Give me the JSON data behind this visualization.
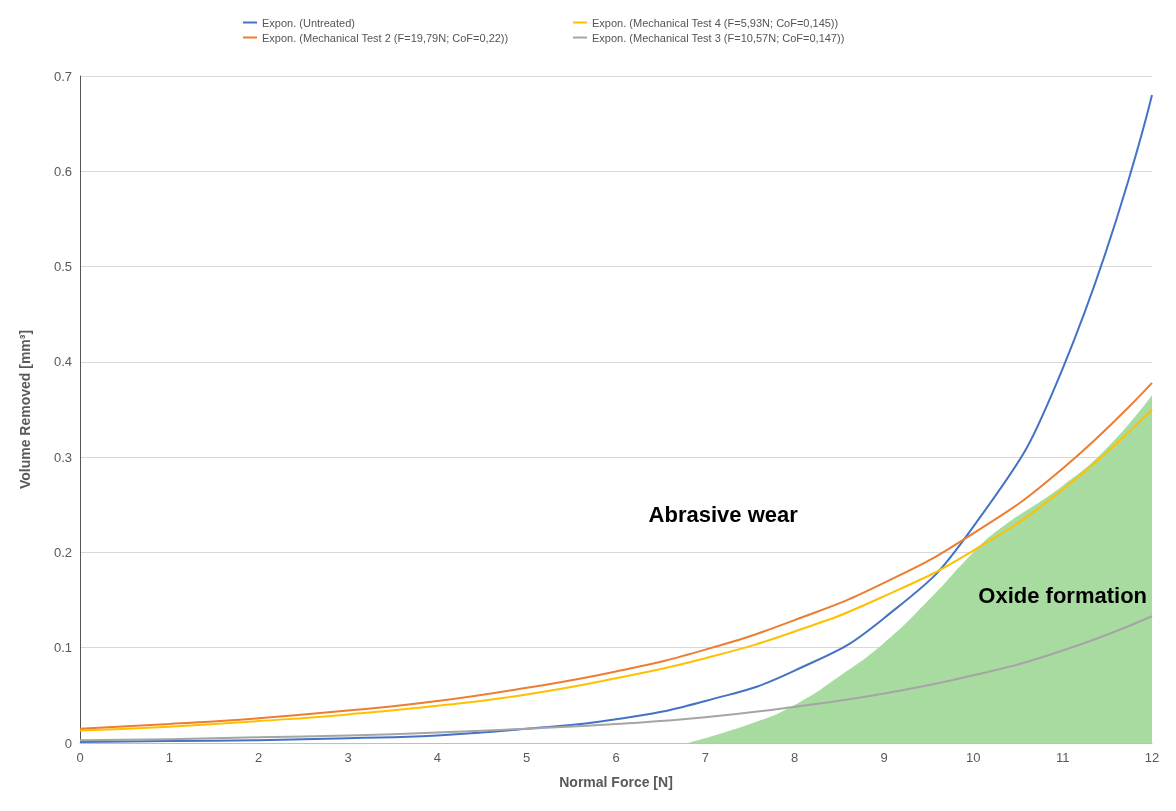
{
  "chart_data": {
    "type": "line",
    "xlabel": "Normal Force [N]",
    "ylabel": "Volume Removed [mm³]",
    "x": [
      0,
      1,
      2,
      3,
      4,
      5,
      6,
      7,
      8,
      9,
      10,
      11,
      12
    ],
    "series": [
      {
        "name": "Expon. (Untreated)",
        "color": "#4472c4",
        "values": [
          0.001,
          0.002,
          0.003,
          0.005,
          0.008,
          0.015,
          0.025,
          0.044,
          0.076,
          0.131,
          0.227,
          0.393,
          0.68
        ]
      },
      {
        "name": "Expon. (Mechanical Test 4 (F=5,93N; CoF=0,145))",
        "color": "#ffc000",
        "values": [
          0.013,
          0.017,
          0.023,
          0.03,
          0.039,
          0.051,
          0.068,
          0.089,
          0.117,
          0.154,
          0.202,
          0.266,
          0.35
        ]
      },
      {
        "name": "Expon. (Mechanical Test 2 (F=19,79N; CoF=0,22))",
        "color": "#ed7d31",
        "values": [
          0.015,
          0.02,
          0.026,
          0.034,
          0.044,
          0.058,
          0.075,
          0.098,
          0.129,
          0.168,
          0.22,
          0.288,
          0.378
        ]
      },
      {
        "name": "Expon. (Mechanical Test 3 (F=10,57N; CoF=0,147))",
        "color": "#a5a5a5",
        "values": [
          0.003,
          0.004,
          0.006,
          0.008,
          0.011,
          0.015,
          0.02,
          0.027,
          0.038,
          0.052,
          0.071,
          0.097,
          0.133
        ]
      },
      {
        "type": "area",
        "color": "#a8dba0",
        "x": [
          6.8,
          7.5,
          8,
          8.5,
          9,
          9.5,
          10,
          10.3,
          11,
          11.5,
          12
        ],
        "values": [
          0,
          0.02,
          0.04,
          0.07,
          0.105,
          0.15,
          0.2,
          0.225,
          0.27,
          0.31,
          0.365
        ]
      }
    ],
    "annotations": [
      "Abrasive wear",
      "Oxide formation"
    ],
    "xlim": [
      0,
      12
    ],
    "xticks": [
      0,
      1,
      2,
      3,
      4,
      5,
      6,
      7,
      8,
      9,
      10,
      11,
      12
    ],
    "ylim": [
      0,
      0.7
    ],
    "yticks": [
      0,
      0.1,
      0.2,
      0.3,
      0.4,
      0.5,
      0.6,
      0.7
    ],
    "grid": "y",
    "legend": "top",
    "marker": "none",
    "line_style": "solid"
  }
}
